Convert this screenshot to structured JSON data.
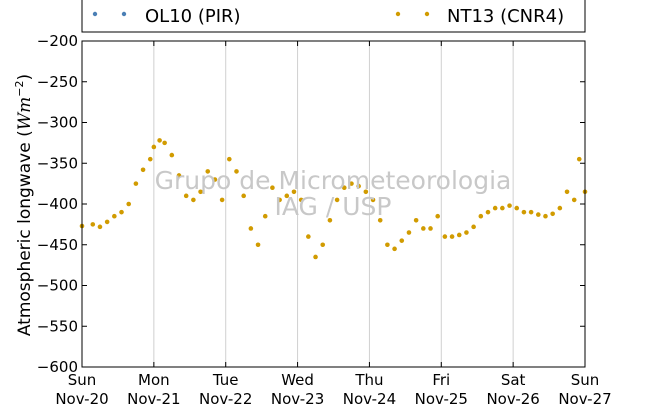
{
  "chart_data": {
    "type": "scatter",
    "ylabel": "Atmospheric longwave (Wm^-2)",
    "ylabel_main": "Atmospheric longwave (",
    "ylabel_unit_base": "Wm",
    "ylabel_unit_exp": "−2",
    "ylabel_close": ")",
    "ylim": [
      -600,
      -200
    ],
    "yticks": [
      -200,
      -250,
      -300,
      -350,
      -400,
      -450,
      -500,
      -550,
      -600
    ],
    "ytick_labels": [
      "−200",
      "−250",
      "−300",
      "−350",
      "−400",
      "−450",
      "−500",
      "−550",
      "−600"
    ],
    "xlim_days": [
      0,
      7
    ],
    "xticks": [
      {
        "day": "Sun",
        "date": "Nov-20"
      },
      {
        "day": "Mon",
        "date": "Nov-21"
      },
      {
        "day": "Tue",
        "date": "Nov-22"
      },
      {
        "day": "Wed",
        "date": "Nov-23"
      },
      {
        "day": "Thu",
        "date": "Nov-24"
      },
      {
        "day": "Fri",
        "date": "Nov-25"
      },
      {
        "day": "Sat",
        "date": "Nov-26"
      },
      {
        "day": "Sun",
        "date": "Nov-27"
      }
    ],
    "grid": "vertical",
    "legend_position": "top",
    "series": [
      {
        "name": "OL10 (PIR)",
        "color": "#4a7fb5",
        "x": [],
        "y": []
      },
      {
        "name": "NT13 (CNR4)",
        "color": "#d19b00",
        "x": [
          0.0,
          0.15,
          0.25,
          0.35,
          0.45,
          0.55,
          0.65,
          0.75,
          0.85,
          0.95,
          1.0,
          1.08,
          1.15,
          1.25,
          1.35,
          1.45,
          1.55,
          1.65,
          1.75,
          1.85,
          1.95,
          2.05,
          2.15,
          2.25,
          2.35,
          2.45,
          2.55,
          2.65,
          2.75,
          2.85,
          2.95,
          3.05,
          3.15,
          3.25,
          3.35,
          3.45,
          3.55,
          3.65,
          3.75,
          3.85,
          3.95,
          4.05,
          4.15,
          4.25,
          4.35,
          4.45,
          4.55,
          4.65,
          4.75,
          4.85,
          4.95,
          5.05,
          5.15,
          5.25,
          5.35,
          5.45,
          5.55,
          5.65,
          5.75,
          5.85,
          5.95,
          6.05,
          6.15,
          6.25,
          6.35,
          6.45,
          6.55,
          6.65,
          6.75,
          6.85,
          6.92,
          7.0
        ],
        "y": [
          -427,
          -425,
          -428,
          -422,
          -415,
          -410,
          -400,
          -375,
          -358,
          -345,
          -330,
          -322,
          -325,
          -340,
          -365,
          -390,
          -395,
          -385,
          -360,
          -370,
          -395,
          -345,
          -360,
          -390,
          -430,
          -450,
          -415,
          -380,
          -395,
          -390,
          -385,
          -395,
          -440,
          -465,
          -450,
          -420,
          -395,
          -380,
          -375,
          -378,
          -385,
          -395,
          -420,
          -450,
          -455,
          -445,
          -435,
          -420,
          -430,
          -430,
          -415,
          -440,
          -440,
          -438,
          -435,
          -428,
          -415,
          -410,
          -405,
          -405,
          -402,
          -405,
          -410,
          -410,
          -413,
          -415,
          -412,
          -405,
          -385,
          -395,
          -345,
          -385
        ]
      }
    ],
    "watermark": [
      "Grupo de Micrometeorologia",
      "IAG / USP"
    ]
  }
}
